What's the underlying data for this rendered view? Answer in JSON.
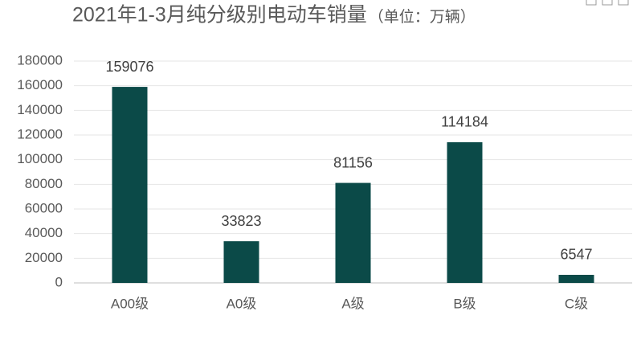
{
  "chart_data": {
    "type": "bar",
    "title": "2021年1-3月纯分级别电动车销量",
    "subtitle": "（单位：万辆）",
    "categories": [
      "A00级",
      "A0级",
      "A级",
      "B级",
      "C级"
    ],
    "values": [
      159076,
      33823,
      81156,
      114184,
      6547
    ],
    "color": "#0b4a48",
    "ylim": [
      0,
      180000
    ],
    "yticks": [
      0,
      20000,
      40000,
      60000,
      80000,
      100000,
      120000,
      140000,
      160000,
      180000
    ],
    "grid": true
  }
}
